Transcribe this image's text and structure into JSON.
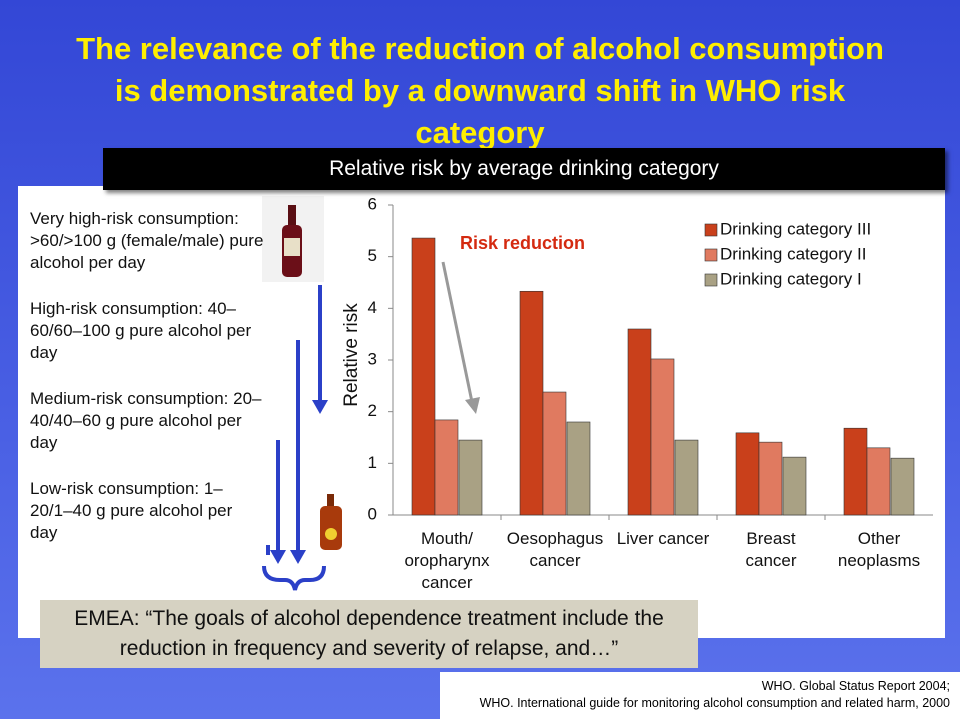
{
  "title": "The relevance of the reduction of alcohol consumption is demonstrated by a downward shift in WHO risk category",
  "banner": "Relative risk by average drinking category",
  "risk_levels": [
    "Very high-risk consumption: >60/>100 g (female/male) pure alcohol per day",
    "High-risk consumption: 40–60/60–100 g pure alcohol per day",
    "Medium-risk consumption: 20–40/40–60 g pure alcohol per day",
    "Low-risk consumption: 1–20/1–40 g pure alcohol per day"
  ],
  "chart_data": {
    "type": "bar",
    "ylabel": "Relative risk",
    "categories": [
      "Mouth/ oropharynx cancer",
      "Oesophagus cancer",
      "Liver cancer",
      "Breast cancer",
      "Other neoplasms"
    ],
    "series": [
      {
        "name": "Drinking category III",
        "color": "#c9401b",
        "values": [
          5.36,
          4.33,
          3.6,
          1.59,
          1.68
        ]
      },
      {
        "name": "Drinking category II",
        "color": "#e07a60",
        "values": [
          1.84,
          2.38,
          3.02,
          1.41,
          1.3
        ]
      },
      {
        "name": "Drinking category I",
        "color": "#a9a184",
        "values": [
          1.45,
          1.8,
          1.45,
          1.12,
          1.1
        ]
      }
    ],
    "ylim": [
      0,
      6
    ],
    "yticks": [
      0,
      1,
      2,
      3,
      4,
      5,
      6
    ],
    "annotation": "Risk reduction"
  },
  "quote": "EMEA: “The goals of alcohol dependence treatment include the reduction in frequency and severity of relapse, and…”",
  "references": [
    "WHO. Global Status Report 2004;",
    "WHO. International guide for monitoring alcohol consumption and related harm, 2000"
  ]
}
